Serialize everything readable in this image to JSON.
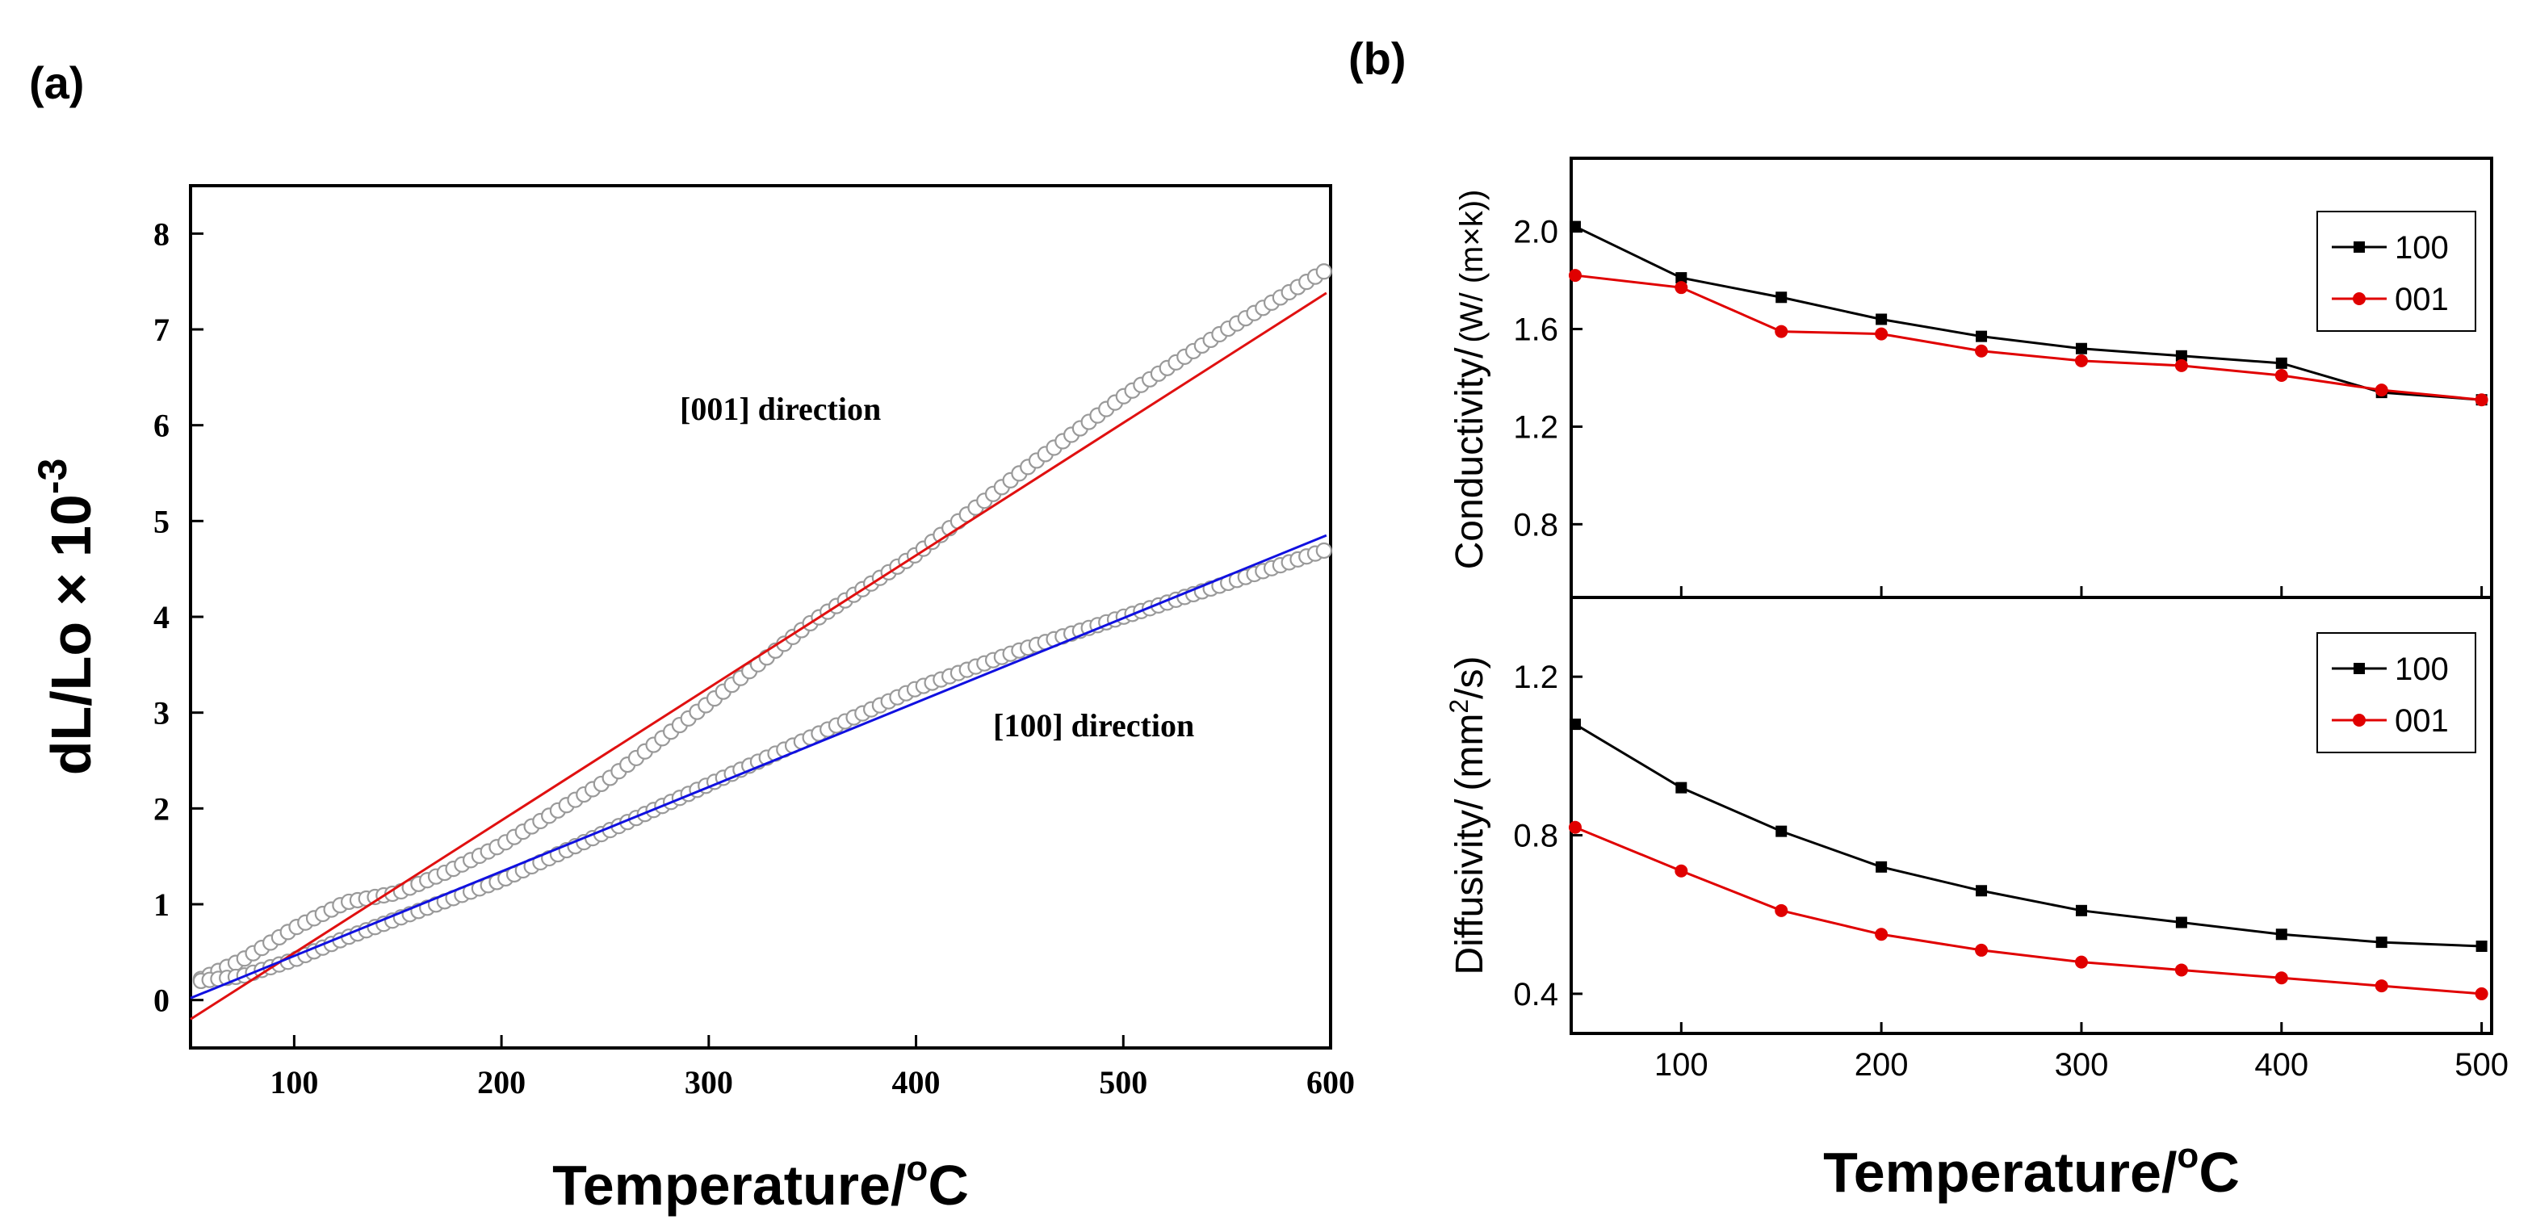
{
  "chart_data": [
    {
      "panel": "(a)",
      "type": "scatter",
      "xlabel": "Temperature/",
      "xlabel_sup": "o",
      "xlabel_unit": "C",
      "ylabel": "dL/Lo × 10",
      "ylabel_sup": "-3",
      "xlim": [
        50,
        600
      ],
      "ylim": [
        -0.5,
        8.5
      ],
      "xticks": [
        100,
        200,
        300,
        400,
        500,
        600
      ],
      "yticks": [
        0,
        1,
        2,
        3,
        4,
        5,
        6,
        7,
        8
      ],
      "annotations": [
        "[001] direction",
        "[100] direction"
      ],
      "series": [
        {
          "marker": "open-circle",
          "color": "#9a9a9a",
          "x": [
            55,
            75,
            100,
            125,
            150,
            175,
            200,
            250,
            300,
            350,
            400,
            450,
            500,
            550,
            598
          ],
          "y": [
            0.22,
            0.42,
            0.75,
            1.02,
            1.12,
            1.35,
            1.62,
            2.28,
            3.1,
            3.95,
            4.65,
            5.5,
            6.3,
            7.0,
            7.62
          ]
        },
        {
          "marker": "open-circle",
          "color": "#9a9a9a",
          "x": [
            55,
            75,
            100,
            125,
            150,
            175,
            200,
            250,
            300,
            350,
            400,
            450,
            500,
            550,
            598
          ],
          "y": [
            0.2,
            0.25,
            0.42,
            0.65,
            0.85,
            1.05,
            1.25,
            1.75,
            2.25,
            2.75,
            3.25,
            3.65,
            4.0,
            4.35,
            4.7
          ]
        },
        {
          "style": "line",
          "color": "#e01010",
          "x": [
            50,
            598
          ],
          "y": [
            -0.2,
            7.38
          ]
        },
        {
          "style": "line",
          "color": "#1010e0",
          "x": [
            50,
            598
          ],
          "y": [
            0.02,
            4.85
          ]
        }
      ]
    },
    {
      "panel": "(b)",
      "type": "line",
      "ylabel": "Conductivity/",
      "ylabel_unit": "(W/ (m×k))",
      "xlim": [
        45,
        505
      ],
      "ylim": [
        0.5,
        2.3
      ],
      "yticks": [
        0.8,
        1.2,
        1.6,
        2.0
      ],
      "x": [
        47,
        100,
        150,
        200,
        250,
        300,
        350,
        400,
        450,
        500
      ],
      "series": [
        {
          "name": "100",
          "color": "#000000",
          "marker": "square",
          "values": [
            2.02,
            1.81,
            1.73,
            1.64,
            1.57,
            1.52,
            1.49,
            1.46,
            1.34,
            1.31
          ]
        },
        {
          "name": "001",
          "color": "#e00000",
          "marker": "circle",
          "values": [
            1.82,
            1.77,
            1.59,
            1.58,
            1.51,
            1.47,
            1.45,
            1.41,
            1.35,
            1.31
          ]
        }
      ]
    },
    {
      "panel": "(b)",
      "type": "line",
      "ylabel": "Diffusivity/",
      "ylabel_unit": "(mm",
      "ylabel_sup": "2",
      "ylabel_unit_end": "/s)",
      "xlabel": "Temperature/",
      "xlabel_sup": "o",
      "xlabel_unit": "C",
      "xlim": [
        45,
        505
      ],
      "ylim": [
        0.3,
        1.4
      ],
      "xticks": [
        100,
        200,
        300,
        400,
        500
      ],
      "yticks": [
        0.4,
        0.8,
        1.2
      ],
      "x": [
        47,
        100,
        150,
        200,
        250,
        300,
        350,
        400,
        450,
        500
      ],
      "series": [
        {
          "name": "100",
          "color": "#000000",
          "marker": "square",
          "values": [
            1.08,
            0.92,
            0.81,
            0.72,
            0.66,
            0.61,
            0.58,
            0.55,
            0.53,
            0.52
          ]
        },
        {
          "name": "001",
          "color": "#e00000",
          "marker": "circle",
          "values": [
            0.82,
            0.71,
            0.61,
            0.55,
            0.51,
            0.48,
            0.46,
            0.44,
            0.42,
            0.4
          ]
        }
      ]
    }
  ]
}
